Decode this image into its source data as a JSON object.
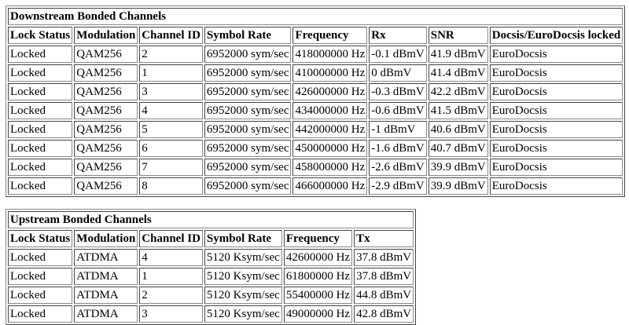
{
  "downstream": {
    "title": "Downstream Bonded Channels",
    "headers": [
      "Lock Status",
      "Modulation",
      "Channel ID",
      "Symbol Rate",
      "Frequency",
      "Rx",
      "SNR",
      "Docsis/EuroDocsis locked"
    ],
    "rows": [
      [
        "Locked",
        "QAM256",
        "2",
        "6952000 sym/sec",
        "418000000 Hz",
        "-0.1 dBmV",
        "41.9 dBmV",
        "EuroDocsis"
      ],
      [
        "Locked",
        "QAM256",
        "1",
        "6952000 sym/sec",
        "410000000 Hz",
        "0 dBmV",
        "41.4 dBmV",
        "EuroDocsis"
      ],
      [
        "Locked",
        "QAM256",
        "3",
        "6952000 sym/sec",
        "426000000 Hz",
        "-0.3 dBmV",
        "42.2 dBmV",
        "EuroDocsis"
      ],
      [
        "Locked",
        "QAM256",
        "4",
        "6952000 sym/sec",
        "434000000 Hz",
        "-0.6 dBmV",
        "41.5 dBmV",
        "EuroDocsis"
      ],
      [
        "Locked",
        "QAM256",
        "5",
        "6952000 sym/sec",
        "442000000 Hz",
        "-1 dBmV",
        "40.6 dBmV",
        "EuroDocsis"
      ],
      [
        "Locked",
        "QAM256",
        "6",
        "6952000 sym/sec",
        "450000000 Hz",
        "-1.6 dBmV",
        "40.7 dBmV",
        "EuroDocsis"
      ],
      [
        "Locked",
        "QAM256",
        "7",
        "6952000 sym/sec",
        "458000000 Hz",
        "-2.6 dBmV",
        "39.9 dBmV",
        "EuroDocsis"
      ],
      [
        "Locked",
        "QAM256",
        "8",
        "6952000 sym/sec",
        "466000000 Hz",
        "-2.9 dBmV",
        "39.9 dBmV",
        "EuroDocsis"
      ]
    ]
  },
  "upstream": {
    "title": "Upstream Bonded Channels",
    "headers": [
      "Lock Status",
      "Modulation",
      "Channel ID",
      "Symbol Rate",
      "Frequency",
      "Tx"
    ],
    "rows": [
      [
        "Locked",
        "ATDMA",
        "4",
        "5120 Ksym/sec",
        "42600000 Hz",
        "37.8 dBmV"
      ],
      [
        "Locked",
        "ATDMA",
        "1",
        "5120 Ksym/sec",
        "61800000 Hz",
        "37.8 dBmV"
      ],
      [
        "Locked",
        "ATDMA",
        "2",
        "5120 Ksym/sec",
        "55400000 Hz",
        "44.8 dBmV"
      ],
      [
        "Locked",
        "ATDMA",
        "3",
        "5120 Ksym/sec",
        "49000000 Hz",
        "42.8 dBmV"
      ]
    ]
  }
}
